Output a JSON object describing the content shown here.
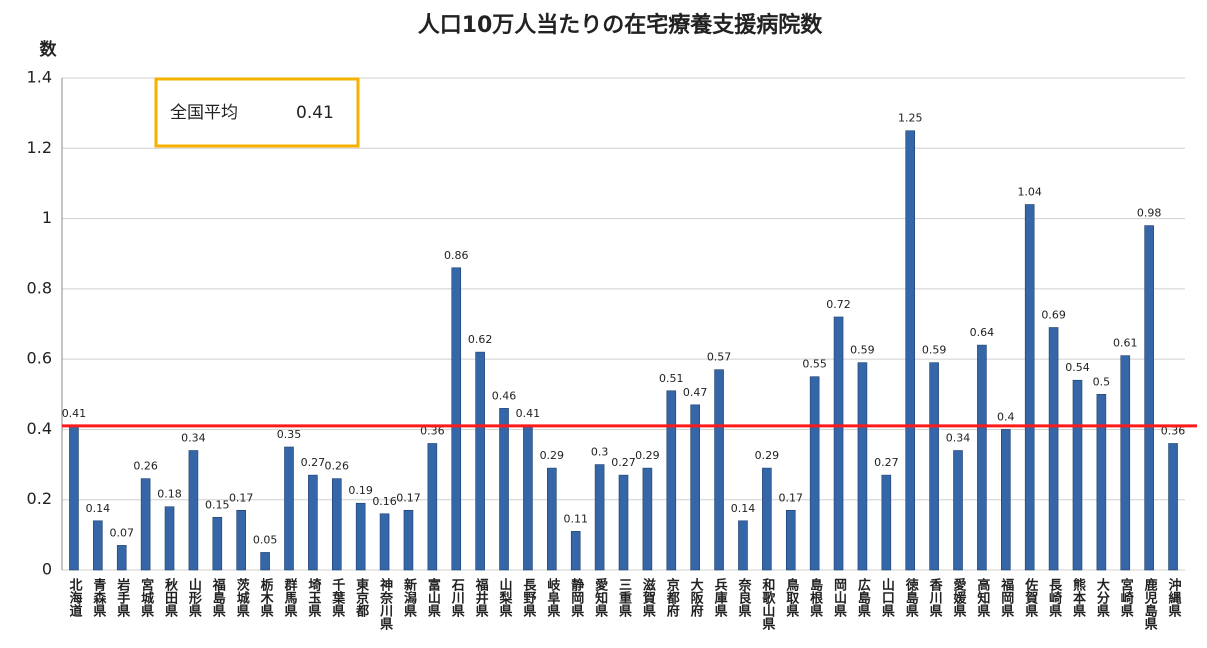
{
  "chart_data": {
    "type": "bar",
    "title": "人口10万人当たりの在宅療養支援病院数",
    "y_label": "数",
    "categories": [
      "北海道",
      "青森県",
      "岩手県",
      "宮城県",
      "秋田県",
      "山形県",
      "福島県",
      "茨城県",
      "栃木県",
      "群馬県",
      "埼玉県",
      "千葉県",
      "東京都",
      "神奈川県",
      "新潟県",
      "富山県",
      "石川県",
      "福井県",
      "山梨県",
      "長野県",
      "岐阜県",
      "静岡県",
      "愛知県",
      "三重県",
      "滋賀県",
      "京都府",
      "大阪府",
      "兵庫県",
      "奈良県",
      "和歌山県",
      "鳥取県",
      "島根県",
      "岡山県",
      "広島県",
      "山口県",
      "徳島県",
      "香川県",
      "愛媛県",
      "高知県",
      "福岡県",
      "佐賀県",
      "長崎県",
      "熊本県",
      "大分県",
      "宮崎県",
      "鹿児島県",
      "沖縄県"
    ],
    "values": [
      0.41,
      0.14,
      0.07,
      0.26,
      0.18,
      0.34,
      0.15,
      0.17,
      0.05,
      0.35,
      0.27,
      0.26,
      0.19,
      0.16,
      0.17,
      0.36,
      0.86,
      0.62,
      0.46,
      0.41,
      0.29,
      0.11,
      0.3,
      0.27,
      0.29,
      0.51,
      0.47,
      0.57,
      0.14,
      0.29,
      0.17,
      0.55,
      0.72,
      0.59,
      0.27,
      1.25,
      0.59,
      0.34,
      0.64,
      0.4,
      1.04,
      0.69,
      0.54,
      0.5,
      0.61,
      0.98,
      0.36
    ],
    "color": "#3567a8",
    "ylim": [
      0,
      1.4
    ],
    "yticks": [
      0,
      0.2,
      0.4,
      0.6,
      0.8,
      1,
      1.2,
      1.4
    ],
    "grid": true,
    "average": {
      "label": "全国平均",
      "value": 0.41,
      "color": "#ff1a1a"
    }
  }
}
